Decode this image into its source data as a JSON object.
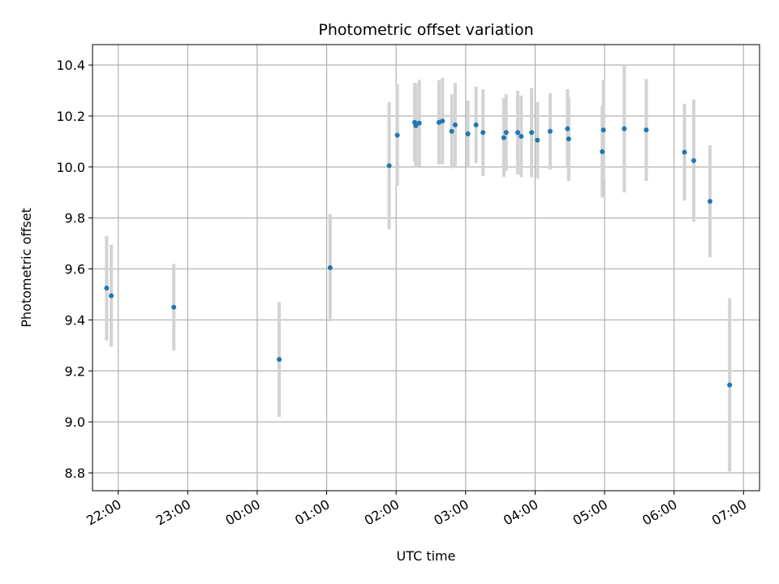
{
  "chart_data": {
    "type": "scatter",
    "title": "Photometric offset variation",
    "xlabel": "UTC time",
    "ylabel": "Photometric offset",
    "x_tick_labels": [
      "22:00",
      "23:00",
      "00:00",
      "01:00",
      "02:00",
      "03:00",
      "04:00",
      "05:00",
      "06:00",
      "07:00"
    ],
    "x_tick_hours": [
      22,
      23,
      24,
      25,
      26,
      27,
      28,
      29,
      30,
      31
    ],
    "xlim": [
      21.63,
      31.23
    ],
    "ylim": [
      8.73,
      10.48
    ],
    "y_ticks": [
      8.8,
      9.0,
      9.2,
      9.4,
      9.6,
      9.8,
      10.0,
      10.2,
      10.4
    ],
    "y_tick_labels": [
      "8.8",
      "9.0",
      "9.2",
      "9.4",
      "9.6",
      "9.8",
      "10.0",
      "10.2",
      "10.4"
    ],
    "grid": true,
    "colors": {
      "points": "#1f77b4",
      "errorbars": "#d3d3d3",
      "grid": "#b0b0b0"
    },
    "points": [
      {
        "time": "21:50",
        "y": 9.525,
        "yerr": 0.205
      },
      {
        "time": "21:54",
        "y": 9.495,
        "yerr": 0.2
      },
      {
        "time": "22:48",
        "y": 9.45,
        "yerr": 0.17
      },
      {
        "time": "00:19",
        "y": 9.245,
        "yerr": 0.225
      },
      {
        "time": "01:03",
        "y": 9.605,
        "yerr": 0.21
      },
      {
        "time": "01:54",
        "y": 10.005,
        "yerr": 0.25
      },
      {
        "time": "02:01",
        "y": 10.125,
        "yerr": 0.2
      },
      {
        "time": "02:16",
        "y": 10.175,
        "yerr": 0.155
      },
      {
        "time": "02:17",
        "y": 10.162,
        "yerr": 0.165
      },
      {
        "time": "02:20",
        "y": 10.172,
        "yerr": 0.17
      },
      {
        "time": "02:37",
        "y": 10.175,
        "yerr": 0.165
      },
      {
        "time": "02:40",
        "y": 10.18,
        "yerr": 0.17
      },
      {
        "time": "02:48",
        "y": 10.14,
        "yerr": 0.145
      },
      {
        "time": "02:51",
        "y": 10.165,
        "yerr": 0.165
      },
      {
        "time": "03:02",
        "y": 10.13,
        "yerr": 0.13
      },
      {
        "time": "03:09",
        "y": 10.165,
        "yerr": 0.15
      },
      {
        "time": "03:15",
        "y": 10.135,
        "yerr": 0.17
      },
      {
        "time": "03:33",
        "y": 10.115,
        "yerr": 0.155
      },
      {
        "time": "03:35",
        "y": 10.135,
        "yerr": 0.15
      },
      {
        "time": "03:45",
        "y": 10.135,
        "yerr": 0.165
      },
      {
        "time": "03:48",
        "y": 10.12,
        "yerr": 0.16
      },
      {
        "time": "03:57",
        "y": 10.135,
        "yerr": 0.175
      },
      {
        "time": "04:02",
        "y": 10.105,
        "yerr": 0.15
      },
      {
        "time": "04:13",
        "y": 10.14,
        "yerr": 0.15
      },
      {
        "time": "04:28",
        "y": 10.15,
        "yerr": 0.155
      },
      {
        "time": "04:29",
        "y": 10.11,
        "yerr": 0.165
      },
      {
        "time": "04:58",
        "y": 10.06,
        "yerr": 0.18
      },
      {
        "time": "04:59",
        "y": 10.145,
        "yerr": 0.195
      },
      {
        "time": "05:17",
        "y": 10.15,
        "yerr": 0.25
      },
      {
        "time": "05:36",
        "y": 10.145,
        "yerr": 0.2
      },
      {
        "time": "06:09",
        "y": 10.058,
        "yerr": 0.19
      },
      {
        "time": "06:17",
        "y": 10.025,
        "yerr": 0.24
      },
      {
        "time": "06:31",
        "y": 9.865,
        "yerr": 0.22
      },
      {
        "time": "06:48",
        "y": 9.145,
        "yerr": 0.34
      }
    ]
  }
}
